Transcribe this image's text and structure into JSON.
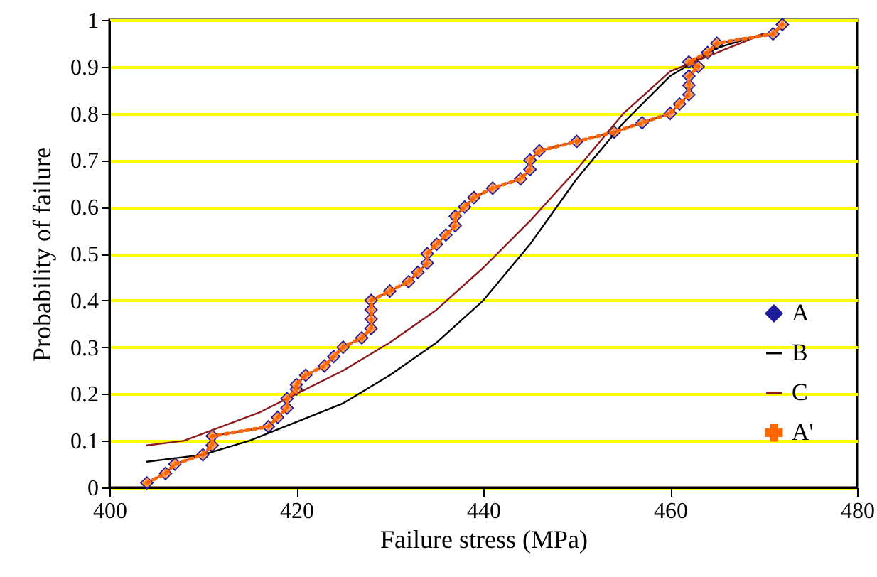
{
  "chart_data": {
    "type": "line",
    "xlabel": "Failure stress (MPa)",
    "ylabel": "Probability of failure",
    "xlim": [
      400,
      480
    ],
    "xticks": [
      400,
      420,
      440,
      460,
      480
    ],
    "ylim": [
      0,
      1
    ],
    "yticks": [
      0,
      0.1,
      0.2,
      0.3,
      0.4,
      0.5,
      0.6,
      0.7,
      0.8,
      0.9,
      1
    ],
    "grid": "y",
    "legend": "bottom right",
    "series": [
      {
        "name": "A",
        "color": "#1c1c9c",
        "marker": "diamond",
        "line_style": "solid",
        "x": [
          404,
          406,
          407,
          410,
          411,
          411,
          417,
          418,
          419,
          419,
          420,
          420,
          421,
          423,
          424,
          425,
          427,
          428,
          428,
          428,
          428,
          430,
          432,
          433,
          434,
          434,
          435,
          436,
          437,
          437,
          438,
          439,
          441,
          444,
          445,
          445,
          446,
          450,
          454,
          457,
          460,
          461,
          462,
          462,
          462,
          463,
          462,
          464,
          465,
          471,
          472
        ],
        "values": [
          0.01,
          0.03,
          0.05,
          0.07,
          0.09,
          0.11,
          0.13,
          0.15,
          0.17,
          0.19,
          0.21,
          0.22,
          0.24,
          0.26,
          0.28,
          0.3,
          0.32,
          0.34,
          0.36,
          0.38,
          0.4,
          0.42,
          0.44,
          0.46,
          0.48,
          0.5,
          0.52,
          0.54,
          0.56,
          0.58,
          0.6,
          0.62,
          0.64,
          0.66,
          0.68,
          0.7,
          0.72,
          0.74,
          0.76,
          0.78,
          0.8,
          0.82,
          0.84,
          0.86,
          0.88,
          0.9,
          0.91,
          0.93,
          0.95,
          0.97,
          0.99
        ]
      },
      {
        "name": "B",
        "color": "#000000",
        "marker": "none",
        "line_style": "solid",
        "x": [
          404,
          410,
          415,
          420,
          425,
          430,
          435,
          440,
          445,
          450,
          455,
          460,
          465,
          470
        ],
        "values": [
          0.055,
          0.07,
          0.1,
          0.14,
          0.18,
          0.24,
          0.31,
          0.4,
          0.52,
          0.66,
          0.78,
          0.88,
          0.94,
          0.97
        ]
      },
      {
        "name": "C",
        "color": "#8b1a1a",
        "marker": "none",
        "line_style": "solid",
        "x": [
          404,
          408,
          412,
          416,
          420,
          425,
          430,
          435,
          440,
          445,
          450,
          455,
          460,
          465,
          470
        ],
        "values": [
          0.09,
          0.1,
          0.13,
          0.16,
          0.2,
          0.25,
          0.31,
          0.38,
          0.47,
          0.57,
          0.68,
          0.8,
          0.89,
          0.93,
          0.97
        ]
      },
      {
        "name": "A'",
        "color": "#ff6600",
        "marker": "cross",
        "line_style": "dotted",
        "x": [
          404,
          406,
          407,
          410,
          411,
          411,
          417,
          418,
          419,
          419,
          420,
          420,
          421,
          423,
          424,
          425,
          427,
          428,
          428,
          428,
          428,
          430,
          432,
          433,
          434,
          434,
          435,
          436,
          437,
          437,
          438,
          439,
          441,
          444,
          445,
          445,
          446,
          450,
          454,
          457,
          460,
          461,
          462,
          462,
          462,
          463,
          462,
          464,
          465,
          471,
          472
        ],
        "values": [
          0.01,
          0.03,
          0.05,
          0.07,
          0.09,
          0.11,
          0.13,
          0.15,
          0.17,
          0.19,
          0.21,
          0.22,
          0.24,
          0.26,
          0.28,
          0.3,
          0.32,
          0.34,
          0.36,
          0.38,
          0.4,
          0.42,
          0.44,
          0.46,
          0.48,
          0.5,
          0.52,
          0.54,
          0.56,
          0.58,
          0.6,
          0.62,
          0.64,
          0.66,
          0.68,
          0.7,
          0.72,
          0.74,
          0.76,
          0.78,
          0.8,
          0.82,
          0.84,
          0.86,
          0.88,
          0.9,
          0.91,
          0.93,
          0.95,
          0.97,
          0.99
        ]
      }
    ]
  }
}
